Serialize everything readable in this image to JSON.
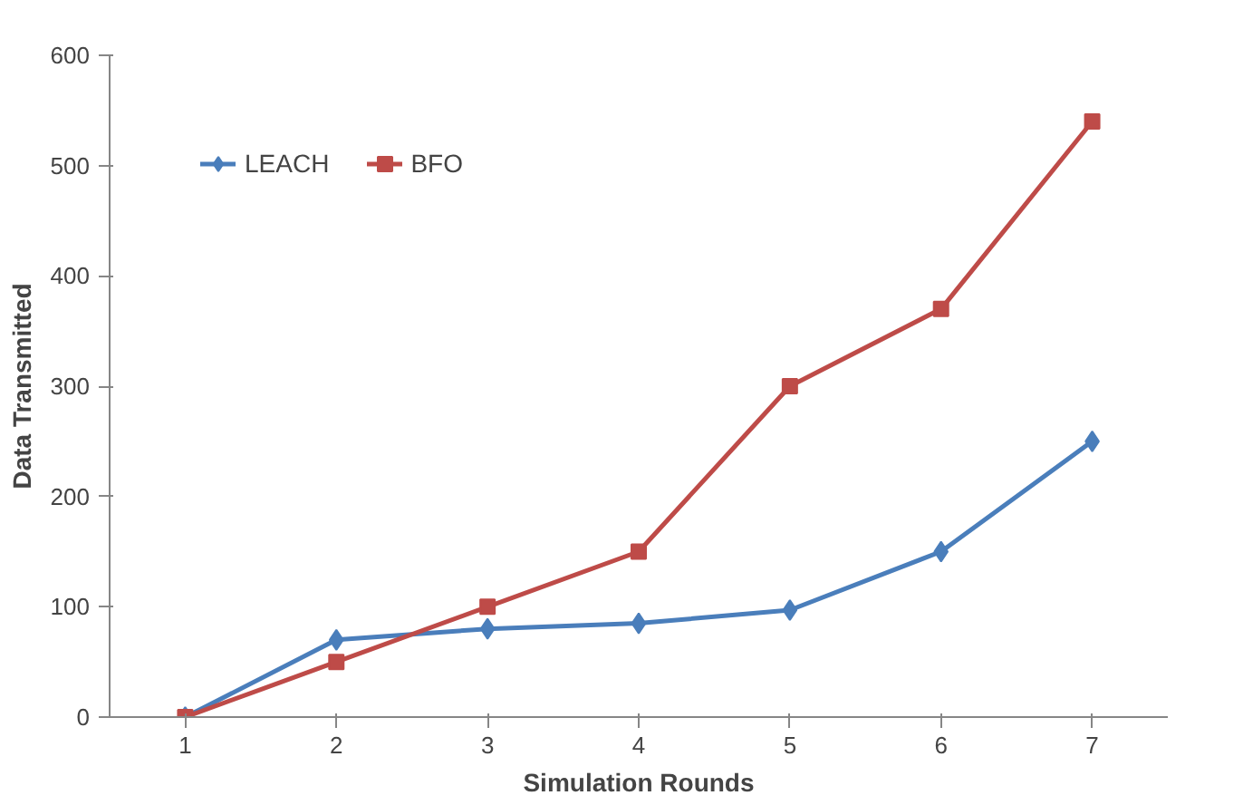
{
  "chart_data": {
    "type": "line",
    "xlabel": "Simulation Rounds",
    "ylabel": "Data Transmitted",
    "categories": [
      "1",
      "2",
      "3",
      "4",
      "5",
      "6",
      "7"
    ],
    "series": [
      {
        "name": "LEACH",
        "color": "#4a7ebb",
        "marker": "diamond",
        "values": [
          0,
          70,
          80,
          85,
          97,
          150,
          250
        ]
      },
      {
        "name": "BFO",
        "color": "#be4b48",
        "marker": "square",
        "values": [
          0,
          50,
          100,
          150,
          300,
          370,
          540
        ]
      }
    ],
    "ylim": [
      0,
      600
    ],
    "yticks": [
      0,
      100,
      200,
      300,
      400,
      500,
      600
    ],
    "grid": false,
    "legend": "top left",
    "line_style": "solid"
  }
}
